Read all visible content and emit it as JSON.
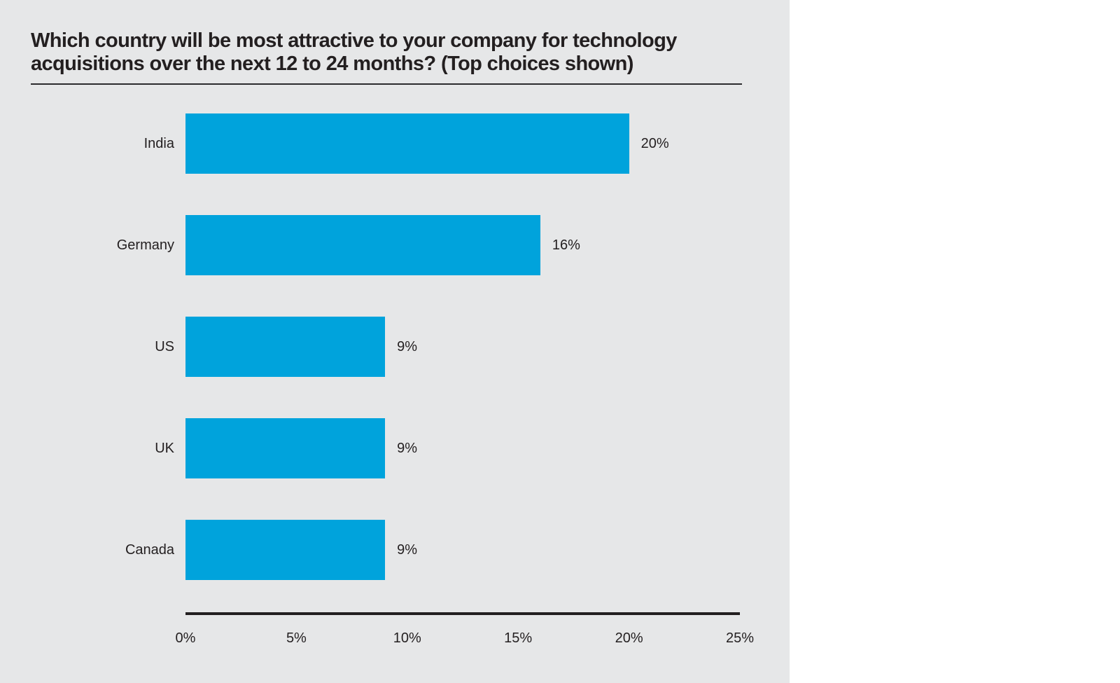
{
  "page": {
    "background_color": "#FFFFFF",
    "panel_color": "#E6E7E8",
    "text_color": "#231F20"
  },
  "title": {
    "lines": [
      "Which country will be most attractive to your company for technology",
      "acquisitions over the next 12 to 24 months? (Top choices shown)"
    ]
  },
  "chart_data": {
    "type": "bar",
    "orientation": "horizontal",
    "title": "Which country will be most attractive to your company for technology acquisitions over the next 12 to 24 months? (Top choices shown)",
    "categories": [
      "India",
      "Germany",
      "US",
      "UK",
      "Canada"
    ],
    "values": [
      20,
      16,
      9,
      9,
      9
    ],
    "value_labels": [
      "20%",
      "16%",
      "9%",
      "9%",
      "9%"
    ],
    "xlabel": "",
    "ylabel": "",
    "xlim": [
      0,
      25
    ],
    "x_ticks": [
      {
        "value": 0,
        "label": "0%"
      },
      {
        "value": 5,
        "label": "5%"
      },
      {
        "value": 10,
        "label": "10%"
      },
      {
        "value": 15,
        "label": "15%"
      },
      {
        "value": 20,
        "label": "20%"
      },
      {
        "value": 25,
        "label": "25%"
      }
    ],
    "grid": false,
    "legend": false,
    "bar_color": "#00A3DC",
    "axis_color": "#231F20",
    "text_color": "#231F20"
  }
}
